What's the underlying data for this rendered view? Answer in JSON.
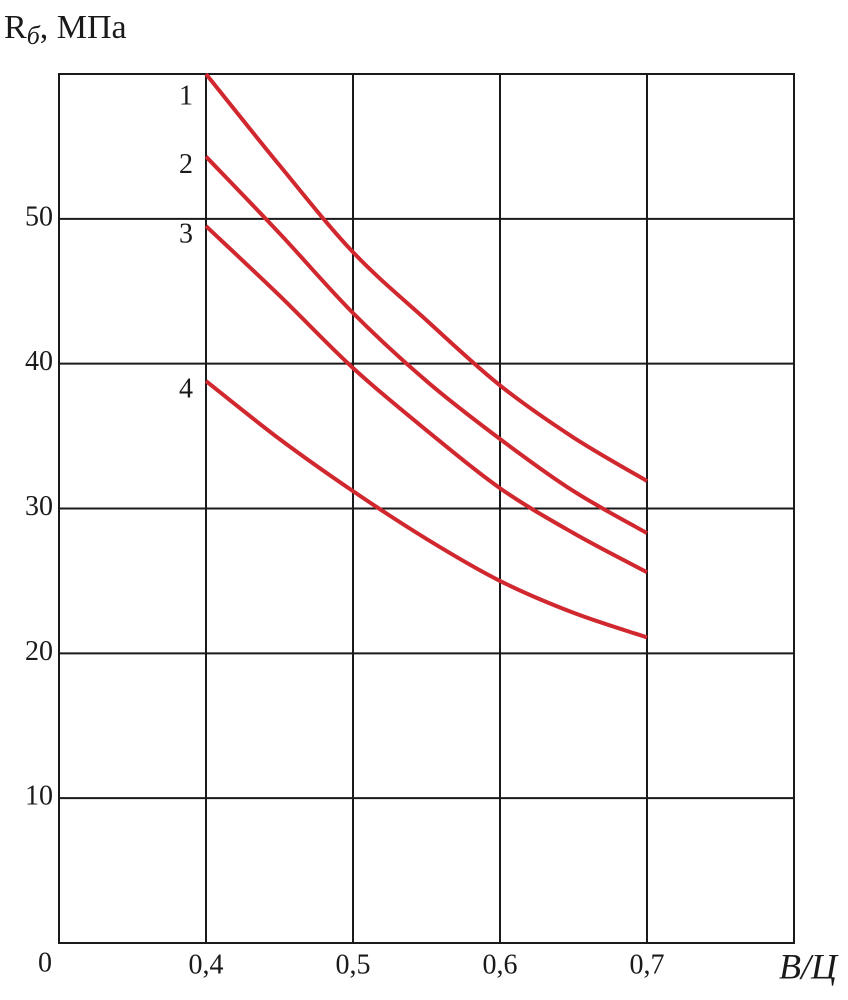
{
  "chart_data": {
    "type": "line",
    "y_label": "R",
    "y_label_sub": "б",
    "y_label_unit": ", МПа",
    "x_label": "В/Ц",
    "x": [
      0.4,
      0.45,
      0.5,
      0.55,
      0.6,
      0.65,
      0.7
    ],
    "series": [
      {
        "name": "1",
        "color": "#d0282e",
        "values": [
          60,
          53.7,
          47.7,
          43.0,
          38.5,
          34.9,
          31.9
        ]
      },
      {
        "name": "2",
        "color": "#d0282e",
        "values": [
          54.3,
          49.0,
          43.5,
          38.8,
          34.8,
          31.2,
          28.3
        ]
      },
      {
        "name": "3",
        "color": "#d0282e",
        "values": [
          49.5,
          44.7,
          39.7,
          35.4,
          31.4,
          28.3,
          25.6
        ]
      },
      {
        "name": "4",
        "color": "#d0282e",
        "values": [
          38.8,
          34.8,
          31.2,
          27.9,
          25.0,
          22.8,
          21.1
        ]
      }
    ],
    "xlim": [
      0.3,
      0.8
    ],
    "ylim": [
      0,
      60
    ],
    "xticks": [
      {
        "value": 0.4,
        "label": "0,4"
      },
      {
        "value": 0.5,
        "label": "0,5"
      },
      {
        "value": 0.6,
        "label": "0,6"
      },
      {
        "value": 0.7,
        "label": "0,7"
      }
    ],
    "yticks": [
      0,
      10,
      20,
      30,
      40,
      50
    ],
    "grid": true
  }
}
